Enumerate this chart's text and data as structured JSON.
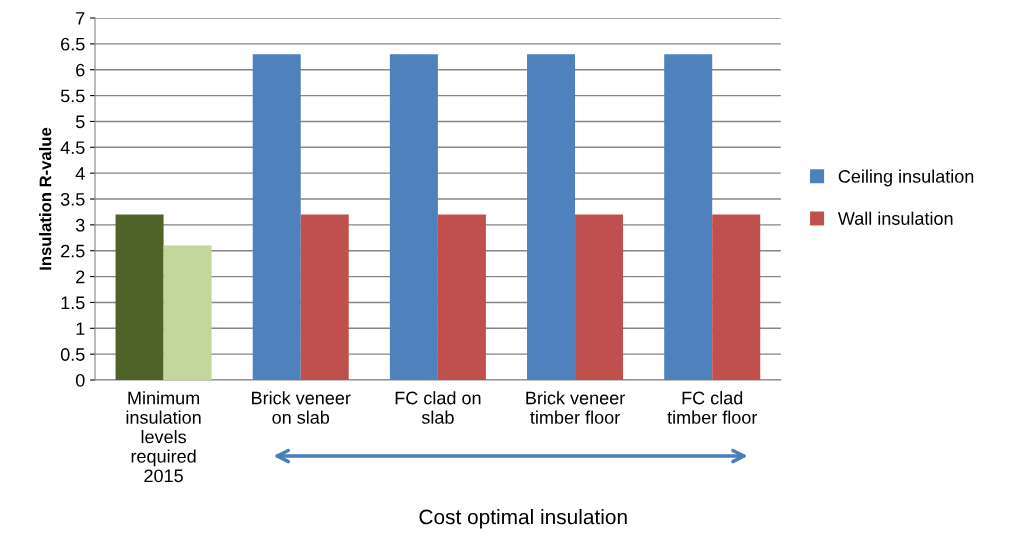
{
  "chart_data": {
    "type": "bar",
    "categories": [
      "Minimum\ninsulation\nlevels\nrequired\n2015",
      "Brick veneer\non slab",
      "FC clad on\nslab",
      "Brick veneer\ntimber floor",
      "FC clad\ntimber floor"
    ],
    "series": [
      {
        "name": "Ceiling insulation",
        "color": "#4f81bd",
        "colors": [
          "#4f6228",
          "#4f81bd",
          "#4f81bd",
          "#4f81bd",
          "#4f81bd"
        ],
        "values": [
          3.2,
          6.3,
          6.3,
          6.3,
          6.3
        ]
      },
      {
        "name": "Wall insulation",
        "color": "#c0504d",
        "colors": [
          "#c3d69b",
          "#c0504d",
          "#c0504d",
          "#c0504d",
          "#c0504d"
        ],
        "values": [
          2.6,
          3.2,
          3.2,
          3.2,
          3.2
        ]
      }
    ],
    "ylabel": "Insulation R-value",
    "ylim": [
      0,
      7
    ],
    "yticks": [
      0,
      0.5,
      1,
      1.5,
      2,
      2.5,
      3,
      3.5,
      4,
      4.5,
      5,
      5.5,
      6,
      6.5,
      7
    ],
    "annotations": [
      "Cost optimal insulation"
    ],
    "grid": "y",
    "legend": "right"
  }
}
